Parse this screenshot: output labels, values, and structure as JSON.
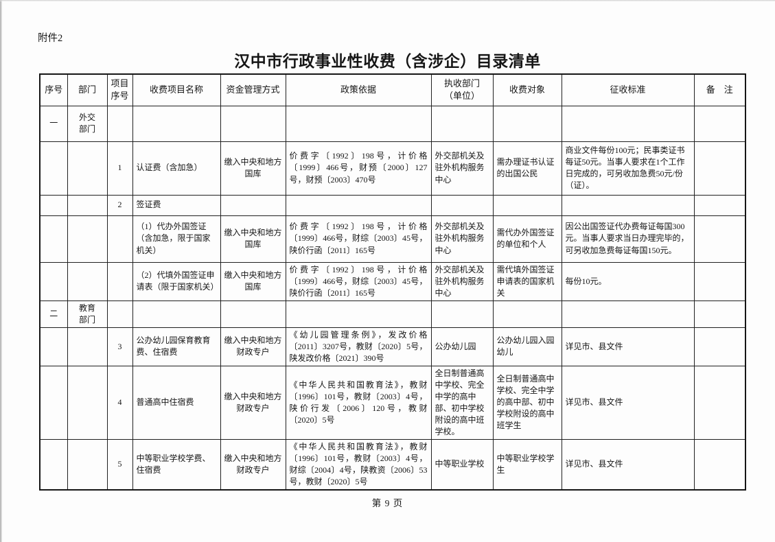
{
  "document": {
    "attachment_label": "附件2",
    "title": "汉中市行政事业性收费（含涉企）目录清单",
    "page_footer": "第 9 页"
  },
  "colors": {
    "ink": "#161616",
    "border": "#1f1f1f",
    "paper": "#fdfdfd"
  },
  "table": {
    "columns": [
      "序号",
      "部门",
      "项目\n序号",
      "收费项目名称",
      "资金管理方式",
      "政策依据",
      "执收部门\n（单位）",
      "收费对象",
      "征收标准",
      "备　注"
    ],
    "rows": [
      [
        "一",
        "外交\n部门",
        "",
        "",
        "",
        "",
        "",
        "",
        "",
        ""
      ],
      [
        "",
        "",
        "1",
        "认证费（含加急）",
        "缴入中央和地方国库",
        "价费字〔1992〕198号，计价格〔1999〕466号，财预〔2000〕127号，财预〔2003〕470号",
        "外交部机关及驻外机构服务中心",
        "需办理证书认证的出国公民",
        "商业文件每份100元；民事类证书每证50元。当事人要求在1个工作日完成的，可另收加急费50元/份（证）。",
        ""
      ],
      [
        "",
        "",
        "2",
        "签证费",
        "",
        "",
        "",
        "",
        "",
        ""
      ],
      [
        "",
        "",
        "",
        "（1）代办外国签证（含加急，限于国家机关）",
        "缴入中央和地方国库",
        "价费字〔1992〕198号，计价格〔1999〕466号，财综〔2003〕45号，陕价行函〔2011〕165号",
        "外交部机关及驻外机构服务中心",
        "需代办外国签证的单位和个人",
        "因公出国签证代办费每证每国300元。当事人要求当日办理完毕的，可另收加急费每证每国150元。",
        ""
      ],
      [
        "",
        "",
        "",
        "（2）代填外国签证申请表（限于国家机关）",
        "缴入中央和地方国库",
        "价费字〔1992〕198号，计价格〔1999〕466号，财综〔2003〕45号，陕价行函〔2011〕165号",
        "外交部机关及驻外机构服务中心",
        "需代填外国签证申请表的国家机关",
        "每份10元。",
        ""
      ],
      [
        "二",
        "教育\n部门",
        "",
        "",
        "",
        "",
        "",
        "",
        "",
        ""
      ],
      [
        "",
        "",
        "3",
        "公办幼儿园保育教育费、住宿费",
        "缴入中央和地方财政专户",
        "《幼儿园管理条例》，发改价格〔2011〕3207号，教财〔2020〕5号，陕发改价格〔2021〕390号",
        "公办幼儿园",
        "公办幼儿园入园幼儿",
        "详见市、县文件",
        ""
      ],
      [
        "",
        "",
        "4",
        "普通高中住宿费",
        "缴入中央和地方财政专户",
        "《中华人民共和国教育法》，教财〔1996〕101号，教财〔2003〕4号，陕价行发〔2006〕120号，教财〔2020〕5号",
        "全日制普通高中学校、完全中学的高中部、初中学校附设的高中班学校。",
        "全日制普通高中学校、完全中学的高中部、初中学校附设的高中班学生",
        "详见市、县文件",
        ""
      ],
      [
        "",
        "",
        "5",
        "中等职业学校学费、住宿费",
        "缴入中央和地方财政专户",
        "《中华人民共和国教育法》，教财〔1996〕101号，教财〔2003〕4号，财综〔2004〕4号，陕教资〔2006〕53号，教财〔2020〕5号",
        "中等职业学校",
        "中等职业学校学生",
        "详见市、县文件",
        ""
      ]
    ]
  }
}
